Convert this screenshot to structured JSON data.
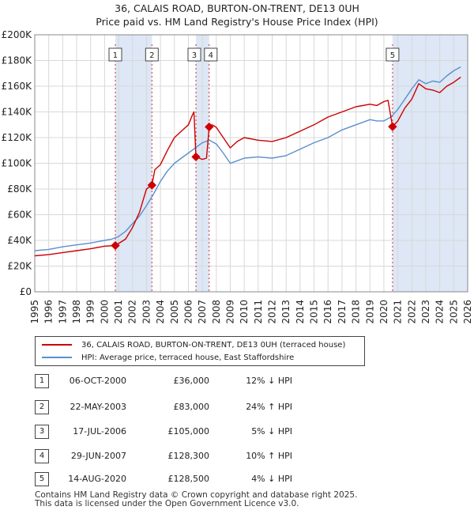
{
  "title_line1": "36, CALAIS ROAD, BURTON-ON-TRENT, DE13 0UH",
  "title_line2": "Price paid vs. HM Land Registry's House Price Index (HPI)",
  "chart_data": {
    "type": "line",
    "title": "36, CALAIS ROAD, BURTON-ON-TRENT, DE13 0UH",
    "subtitle": "Price paid vs. HM Land Registry's House Price Index (HPI)",
    "xlabel": "",
    "ylabel": "",
    "xlim": [
      1995,
      2026
    ],
    "ylim": [
      0,
      200000
    ],
    "y_ticks": [
      0,
      20000,
      40000,
      60000,
      80000,
      100000,
      120000,
      140000,
      160000,
      180000,
      200000
    ],
    "y_tick_labels": [
      "£0",
      "£20K",
      "£40K",
      "£60K",
      "£80K",
      "£100K",
      "£120K",
      "£140K",
      "£160K",
      "£180K",
      "£200K"
    ],
    "x_ticks": [
      1995,
      1996,
      1997,
      1998,
      1999,
      2000,
      2001,
      2002,
      2003,
      2004,
      2005,
      2006,
      2007,
      2008,
      2009,
      2010,
      2011,
      2012,
      2013,
      2014,
      2015,
      2016,
      2017,
      2018,
      2019,
      2020,
      2021,
      2022,
      2023,
      2024,
      2025,
      2026
    ],
    "grid": true,
    "colors": {
      "property": "#cc0000",
      "hpi": "#5b8fd0",
      "shade": "#dde7f5",
      "grid": "#d8d8d8"
    },
    "series": [
      {
        "name": "36, CALAIS ROAD, BURTON-ON-TRENT, DE13 0UH (terraced house)",
        "x": [
          1995.0,
          1996.0,
          1997.0,
          1998.0,
          1999.0,
          2000.0,
          2000.77,
          2001.5,
          2002.0,
          2002.5,
          2003.0,
          2003.39,
          2003.6,
          2004.0,
          2004.5,
          2005.0,
          2005.5,
          2006.0,
          2006.3,
          2006.4,
          2006.54,
          2007.0,
          2007.3,
          2007.49,
          2007.7,
          2008.0,
          2008.5,
          2009.0,
          2009.5,
          2010.0,
          2011.0,
          2012.0,
          2013.0,
          2014.0,
          2015.0,
          2016.0,
          2017.0,
          2018.0,
          2019.0,
          2019.5,
          2020.0,
          2020.3,
          2020.62,
          2021.0,
          2021.5,
          2022.0,
          2022.5,
          2023.0,
          2023.5,
          2024.0,
          2024.5,
          2025.0,
          2025.5
        ],
        "values": [
          28000,
          29000,
          30500,
          32000,
          33500,
          35500,
          36000,
          41000,
          50000,
          62000,
          80000,
          83000,
          95000,
          99000,
          110000,
          120000,
          125000,
          130000,
          138000,
          140000,
          105000,
          103000,
          104000,
          128300,
          130000,
          128000,
          120000,
          112000,
          117000,
          120000,
          118000,
          117000,
          120000,
          125000,
          130000,
          136000,
          140000,
          144000,
          146000,
          145000,
          148000,
          149000,
          128500,
          133000,
          143000,
          150000,
          162000,
          158000,
          157000,
          155000,
          160000,
          163000,
          167000
        ]
      },
      {
        "name": "HPI: Average price, terraced house, East Staffordshire",
        "x": [
          1995.0,
          1996.0,
          1997.0,
          1998.0,
          1999.0,
          2000.0,
          2000.5,
          2001.0,
          2001.5,
          2002.0,
          2002.5,
          2003.0,
          2003.5,
          2004.0,
          2004.5,
          2005.0,
          2005.5,
          2006.0,
          2006.5,
          2007.0,
          2007.5,
          2008.0,
          2008.5,
          2009.0,
          2009.5,
          2010.0,
          2011.0,
          2012.0,
          2013.0,
          2014.0,
          2015.0,
          2016.0,
          2017.0,
          2018.0,
          2019.0,
          2019.5,
          2020.0,
          2020.5,
          2021.0,
          2021.5,
          2022.0,
          2022.5,
          2023.0,
          2023.5,
          2024.0,
          2024.5,
          2025.0,
          2025.5
        ],
        "values": [
          32000,
          33000,
          35000,
          36500,
          38000,
          40000,
          41000,
          43000,
          47000,
          53000,
          59000,
          67000,
          76000,
          86000,
          94000,
          100000,
          104000,
          108000,
          112000,
          116000,
          118000,
          115000,
          108000,
          100000,
          102000,
          104000,
          105000,
          104000,
          106000,
          111000,
          116000,
          120000,
          126000,
          130000,
          134000,
          133000,
          133000,
          136000,
          142000,
          150000,
          158000,
          165000,
          162000,
          164000,
          163000,
          168000,
          172000,
          175000
        ]
      }
    ],
    "sale_markers": [
      {
        "label": "1",
        "x": 2000.77,
        "value": 36000
      },
      {
        "label": "2",
        "x": 2003.39,
        "value": 83000
      },
      {
        "label": "3",
        "x": 2006.54,
        "value": 105000
      },
      {
        "label": "4",
        "x": 2007.49,
        "value": 128300
      },
      {
        "label": "5",
        "x": 2020.62,
        "value": 128500
      }
    ],
    "shaded_ranges": [
      [
        2000.77,
        2003.39
      ],
      [
        2006.54,
        2007.49
      ],
      [
        2020.62,
        2026
      ]
    ]
  },
  "legend": {
    "property_label": "36, CALAIS ROAD, BURTON-ON-TRENT, DE13 0UH (terraced house)",
    "hpi_label": "HPI: Average price, terraced house, East Staffordshire"
  },
  "sales": [
    {
      "num": "1",
      "date": "06-OCT-2000",
      "price": "£36,000",
      "hpi": "12% ↓ HPI"
    },
    {
      "num": "2",
      "date": "22-MAY-2003",
      "price": "£83,000",
      "hpi": "24% ↑ HPI"
    },
    {
      "num": "3",
      "date": "17-JUL-2006",
      "price": "£105,000",
      "hpi": "5% ↓ HPI"
    },
    {
      "num": "4",
      "date": "29-JUN-2007",
      "price": "£128,300",
      "hpi": "10% ↑ HPI"
    },
    {
      "num": "5",
      "date": "14-AUG-2020",
      "price": "£128,500",
      "hpi": "4% ↓ HPI"
    }
  ],
  "footer": {
    "line1": "Contains HM Land Registry data © Crown copyright and database right 2025.",
    "line2": "This data is licensed under the Open Government Licence v3.0."
  }
}
